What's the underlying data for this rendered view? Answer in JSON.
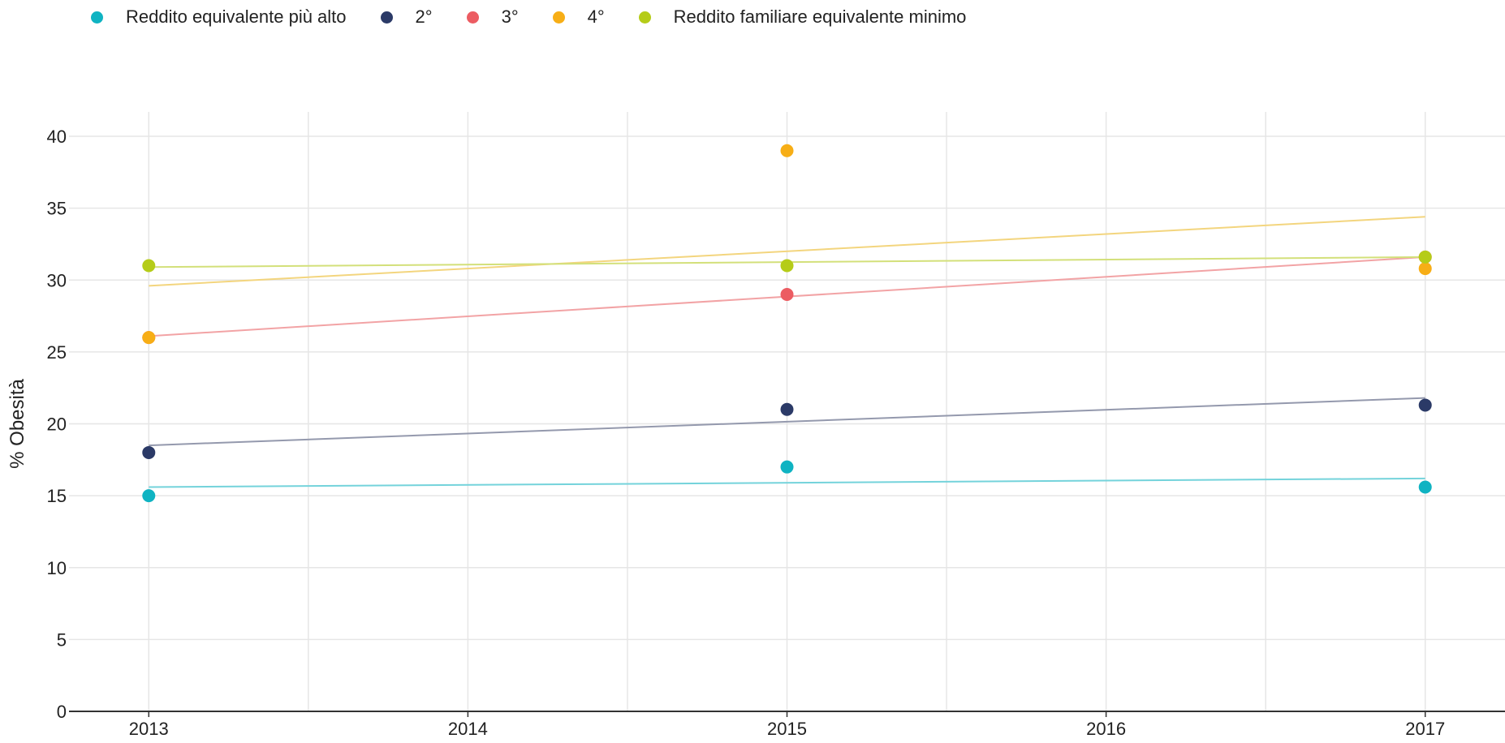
{
  "chart_data": {
    "type": "scatter",
    "title": "",
    "xlabel": "",
    "ylabel": "% Obesità",
    "xlim": [
      2012.75,
      2017.25
    ],
    "ylim": [
      0,
      40
    ],
    "x_ticks": [
      2013,
      2014,
      2015,
      2016,
      2017
    ],
    "y_ticks": [
      0,
      5,
      10,
      15,
      20,
      25,
      30,
      35,
      40
    ],
    "grid": true,
    "legend_position": "top-left",
    "series": [
      {
        "name": "Reddito equivalente più alto",
        "color": "#0fb3c2",
        "trend_color": "#74d3db",
        "points": [
          {
            "x": 2013,
            "y": 15.0
          },
          {
            "x": 2015,
            "y": 17.0
          },
          {
            "x": 2017,
            "y": 15.6
          }
        ],
        "trend": [
          {
            "x": 2013,
            "y": 15.6
          },
          {
            "x": 2017,
            "y": 16.2
          }
        ]
      },
      {
        "name": "2°",
        "color": "#2b3a67",
        "trend_color": "#9499ad",
        "points": [
          {
            "x": 2013,
            "y": 18.0
          },
          {
            "x": 2015,
            "y": 21.0
          },
          {
            "x": 2017,
            "y": 21.3
          }
        ],
        "trend": [
          {
            "x": 2013,
            "y": 18.5
          },
          {
            "x": 2017,
            "y": 21.8
          }
        ]
      },
      {
        "name": "3°",
        "color": "#ec5c62",
        "trend_color": "#f2a3a5",
        "points": [
          {
            "x": 2013,
            "y": 26.0
          },
          {
            "x": 2015,
            "y": 29.0
          },
          {
            "x": 2017,
            "y": 31.6
          }
        ],
        "trend": [
          {
            "x": 2013,
            "y": 26.1
          },
          {
            "x": 2017,
            "y": 31.6
          }
        ]
      },
      {
        "name": "4°",
        "color": "#f7ae16",
        "trend_color": "#f3d57e",
        "points": [
          {
            "x": 2013,
            "y": 26.0
          },
          {
            "x": 2015,
            "y": 39.0
          },
          {
            "x": 2017,
            "y": 30.8
          }
        ],
        "trend": [
          {
            "x": 2013,
            "y": 29.6
          },
          {
            "x": 2017,
            "y": 34.4
          }
        ]
      },
      {
        "name": "Reddito familiare equivalente minimo",
        "color": "#b5cc18",
        "trend_color": "#d3e07a",
        "points": [
          {
            "x": 2013,
            "y": 31.0
          },
          {
            "x": 2015,
            "y": 31.0
          },
          {
            "x": 2017,
            "y": 31.6
          }
        ],
        "trend": [
          {
            "x": 2013,
            "y": 30.9
          },
          {
            "x": 2017,
            "y": 31.6
          }
        ]
      }
    ]
  }
}
